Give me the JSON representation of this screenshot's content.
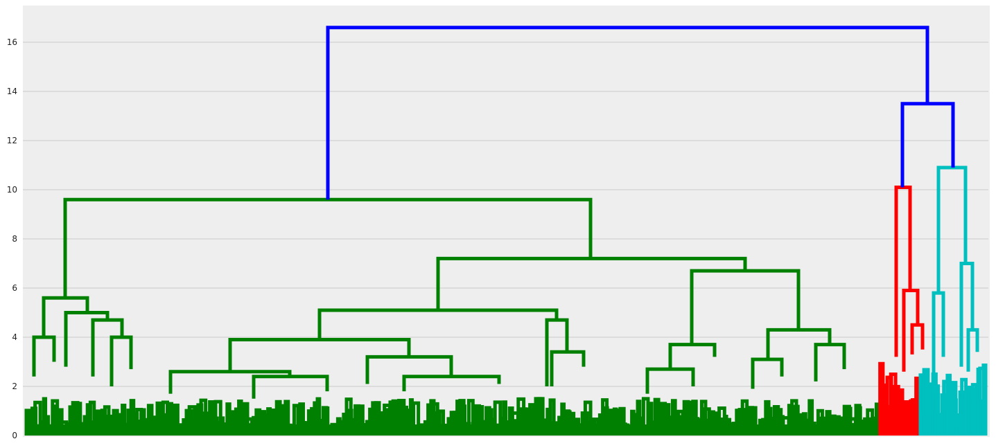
{
  "chart_data": {
    "type": "dendrogram",
    "title": "",
    "xlabel": "",
    "ylabel": "",
    "ylim": [
      0,
      17.4
    ],
    "y_ticks": [
      0,
      2,
      4,
      6,
      8,
      10,
      12,
      14,
      16
    ],
    "y_tick_labels": [
      "0",
      "2",
      "4",
      "6",
      "8",
      "10",
      "12",
      "14",
      "16"
    ],
    "grid": "horizontal",
    "colors": {
      "background": "#eeeeee",
      "grid": "#cbcbcb",
      "above_threshold": "#0000ff",
      "cluster_green": "#008000",
      "cluster_red": "#ff0000",
      "cluster_cyan": "#00bfbf"
    },
    "clusters": [
      {
        "name": "green",
        "color": "#008000",
        "leaf_fraction": 0.888
      },
      {
        "name": "red",
        "color": "#ff0000",
        "leaf_fraction": 0.042
      },
      {
        "name": "cyan",
        "color": "#00bfbf",
        "leaf_fraction": 0.07
      }
    ],
    "top_links": [
      {
        "name": "root",
        "left_x": 473,
        "right_x": 1338,
        "height": 16.6,
        "left_child_height": 9.6,
        "right_child_height": 13.5,
        "color": "#0000ff"
      },
      {
        "name": "red-cyan",
        "left_x": 1302,
        "right_x": 1375,
        "height": 13.5,
        "left_child_height": 10.1,
        "right_child_height": 10.9,
        "color": "#0000ff"
      }
    ],
    "links": [
      {
        "left_x": 94,
        "right_x": 852,
        "height": 9.6,
        "left_child_height": 5.6,
        "right_child_height": 7.2,
        "color": "#008000"
      },
      {
        "left_x": 63,
        "right_x": 126,
        "height": 5.6,
        "left_child_height": 4.0,
        "right_child_height": 5.0,
        "color": "#008000"
      },
      {
        "left_x": 49,
        "right_x": 78,
        "height": 4.0,
        "left_child_height": 2.4,
        "right_child_height": 3.0,
        "color": "#008000"
      },
      {
        "left_x": 95,
        "right_x": 155,
        "height": 5.0,
        "left_child_height": 2.8,
        "right_child_height": 4.7,
        "color": "#008000"
      },
      {
        "left_x": 134,
        "right_x": 176,
        "height": 4.7,
        "left_child_height": 2.4,
        "right_child_height": 4.0,
        "color": "#008000"
      },
      {
        "left_x": 161,
        "right_x": 189,
        "height": 4.0,
        "left_child_height": 2.0,
        "right_child_height": 2.7,
        "color": "#008000"
      },
      {
        "left_x": 632,
        "right_x": 1075,
        "height": 7.2,
        "left_child_height": 5.1,
        "right_child_height": 6.7,
        "color": "#008000"
      },
      {
        "left_x": 461,
        "right_x": 803,
        "height": 5.1,
        "left_child_height": 3.9,
        "right_child_height": 4.7,
        "color": "#008000"
      },
      {
        "left_x": 332,
        "right_x": 590,
        "height": 3.9,
        "left_child_height": 2.6,
        "right_child_height": 3.2,
        "color": "#008000"
      },
      {
        "left_x": 246,
        "right_x": 418,
        "height": 2.6,
        "left_child_height": 1.7,
        "right_child_height": 2.4,
        "color": "#008000"
      },
      {
        "left_x": 366,
        "right_x": 472,
        "height": 2.4,
        "left_child_height": 1.5,
        "right_child_height": 1.8,
        "color": "#008000"
      },
      {
        "left_x": 530,
        "right_x": 651,
        "height": 3.2,
        "left_child_height": 2.1,
        "right_child_height": 2.4,
        "color": "#008000"
      },
      {
        "left_x": 583,
        "right_x": 720,
        "height": 2.4,
        "left_child_height": 1.8,
        "right_child_height": 2.1,
        "color": "#008000"
      },
      {
        "left_x": 789,
        "right_x": 818,
        "height": 4.7,
        "left_child_height": 2.0,
        "right_child_height": 3.4,
        "color": "#008000"
      },
      {
        "left_x": 796,
        "right_x": 842,
        "height": 3.4,
        "left_child_height": 2.0,
        "right_child_height": 2.8,
        "color": "#008000"
      },
      {
        "left_x": 998,
        "right_x": 1152,
        "height": 6.7,
        "left_child_height": 3.7,
        "right_child_height": 4.3,
        "color": "#008000"
      },
      {
        "left_x": 967,
        "right_x": 1031,
        "height": 3.7,
        "left_child_height": 2.7,
        "right_child_height": 3.2,
        "color": "#008000"
      },
      {
        "left_x": 934,
        "right_x": 1000,
        "height": 2.7,
        "left_child_height": 1.7,
        "right_child_height": 2.0,
        "color": "#008000"
      },
      {
        "left_x": 1108,
        "right_x": 1197,
        "height": 4.3,
        "left_child_height": 3.1,
        "right_child_height": 3.7,
        "color": "#008000"
      },
      {
        "left_x": 1086,
        "right_x": 1128,
        "height": 3.1,
        "left_child_height": 1.9,
        "right_child_height": 2.4,
        "color": "#008000"
      },
      {
        "left_x": 1177,
        "right_x": 1218,
        "height": 3.7,
        "left_child_height": 2.2,
        "right_child_height": 2.7,
        "color": "#008000"
      },
      {
        "left_x": 1293,
        "right_x": 1313,
        "height": 10.1,
        "left_child_height": 3.2,
        "right_child_height": 5.9,
        "color": "#ff0000"
      },
      {
        "left_x": 1304,
        "right_x": 1324,
        "height": 5.9,
        "left_child_height": 2.6,
        "right_child_height": 4.5,
        "color": "#ff0000"
      },
      {
        "left_x": 1316,
        "right_x": 1331,
        "height": 4.5,
        "left_child_height": 3.3,
        "right_child_height": 3.5,
        "color": "#ff0000"
      },
      {
        "left_x": 1354,
        "right_x": 1393,
        "height": 10.9,
        "left_child_height": 5.8,
        "right_child_height": 7.0,
        "color": "#00bfbf"
      },
      {
        "left_x": 1347,
        "right_x": 1361,
        "height": 5.8,
        "left_child_height": 1.8,
        "right_child_height": 3.2,
        "color": "#00bfbf"
      },
      {
        "left_x": 1387,
        "right_x": 1403,
        "height": 7.0,
        "left_child_height": 2.8,
        "right_child_height": 4.3,
        "color": "#00bfbf"
      },
      {
        "left_x": 1397,
        "right_x": 1410,
        "height": 4.3,
        "left_child_height": 2.6,
        "right_child_height": 3.4,
        "color": "#00bfbf"
      }
    ]
  }
}
